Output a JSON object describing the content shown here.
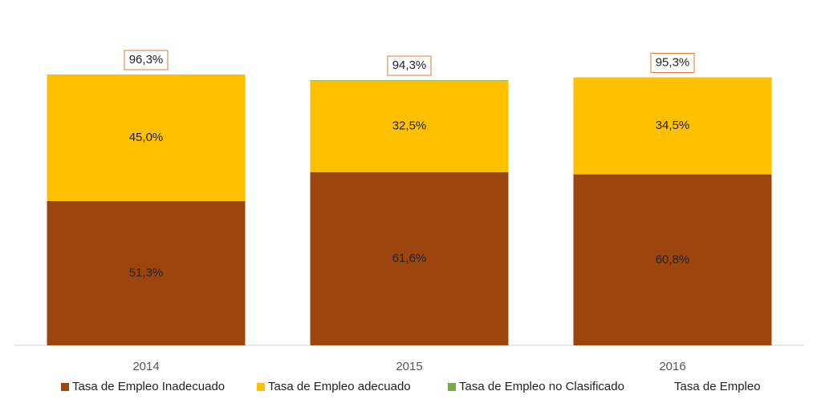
{
  "chart_data": {
    "type": "bar",
    "stacked": true,
    "categories": [
      "2014",
      "2015",
      "2016"
    ],
    "series": [
      {
        "name": "Tasa de Empleo Inadecuado",
        "color": "#9c450e",
        "values": [
          51.3,
          61.6,
          60.8
        ],
        "value_labels": [
          "51,3%",
          "61,6%",
          "60,8%"
        ]
      },
      {
        "name": "Tasa de Empleo adecuado",
        "color": "#ffc000",
        "values": [
          45.0,
          32.5,
          34.5
        ],
        "value_labels": [
          "45,0%",
          "32,5%",
          "34,5%"
        ]
      },
      {
        "name": "Tasa de Empleo no Clasificado",
        "color": "#70ad47",
        "values": [
          0,
          0.2,
          0
        ]
      },
      {
        "name": "Tasa de Empleo",
        "values": [
          96.3,
          94.3,
          95.3
        ],
        "value_labels": [
          "96,3%",
          "94,3%",
          "95,3%"
        ],
        "label_border": "#e07b39"
      }
    ]
  }
}
